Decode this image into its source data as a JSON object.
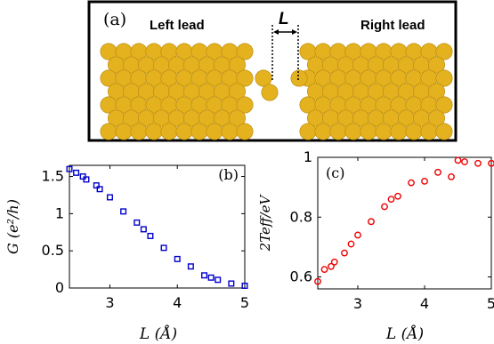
{
  "panel_a": {
    "tag": "(a)",
    "left_label": "Left lead",
    "right_label": "Right lead",
    "gap_label": "L",
    "atom_color": "#e3b21e"
  },
  "chart_data": [
    {
      "type": "scatter",
      "tag": "(b)",
      "xlabel": "L (Å)",
      "ylabel": "G (e²/h)",
      "xlim": [
        2.4,
        5.0
      ],
      "ylim": [
        0,
        1.65
      ],
      "xticks": [
        3,
        4,
        5
      ],
      "yticks": [
        0,
        0.5,
        1,
        1.5
      ],
      "ytick_labels": [
        "0",
        "0.5",
        "1",
        "1.5"
      ],
      "marker": "square",
      "color": "#0000cc",
      "x": [
        2.4,
        2.5,
        2.6,
        2.65,
        2.8,
        2.85,
        3.0,
        3.2,
        3.4,
        3.5,
        3.6,
        3.8,
        4.0,
        4.2,
        4.4,
        4.5,
        4.6,
        4.8,
        5.0
      ],
      "y": [
        1.6,
        1.55,
        1.5,
        1.46,
        1.38,
        1.33,
        1.22,
        1.03,
        0.88,
        0.79,
        0.7,
        0.54,
        0.39,
        0.29,
        0.17,
        0.14,
        0.11,
        0.06,
        0.03
      ]
    },
    {
      "type": "scatter",
      "tag": "(c)",
      "xlabel": "L (Å)",
      "ylabel": "2Teff/eV",
      "xlim": [
        2.4,
        5.0
      ],
      "ylim": [
        0.56,
        1.0
      ],
      "xticks": [
        3,
        4,
        5
      ],
      "yticks": [
        0.6,
        0.8,
        1.0
      ],
      "ytick_labels": [
        "0.6",
        "0.8",
        "1"
      ],
      "marker": "circle",
      "color": "#ee0000",
      "x": [
        2.4,
        2.5,
        2.6,
        2.65,
        2.8,
        2.9,
        3.0,
        3.2,
        3.4,
        3.5,
        3.6,
        3.8,
        4.0,
        4.2,
        4.4,
        4.5,
        4.6,
        4.8,
        5.0
      ],
      "y": [
        0.585,
        0.625,
        0.635,
        0.65,
        0.68,
        0.71,
        0.74,
        0.785,
        0.835,
        0.86,
        0.87,
        0.915,
        0.92,
        0.95,
        0.935,
        0.99,
        0.985,
        0.98,
        0.98
      ]
    }
  ]
}
